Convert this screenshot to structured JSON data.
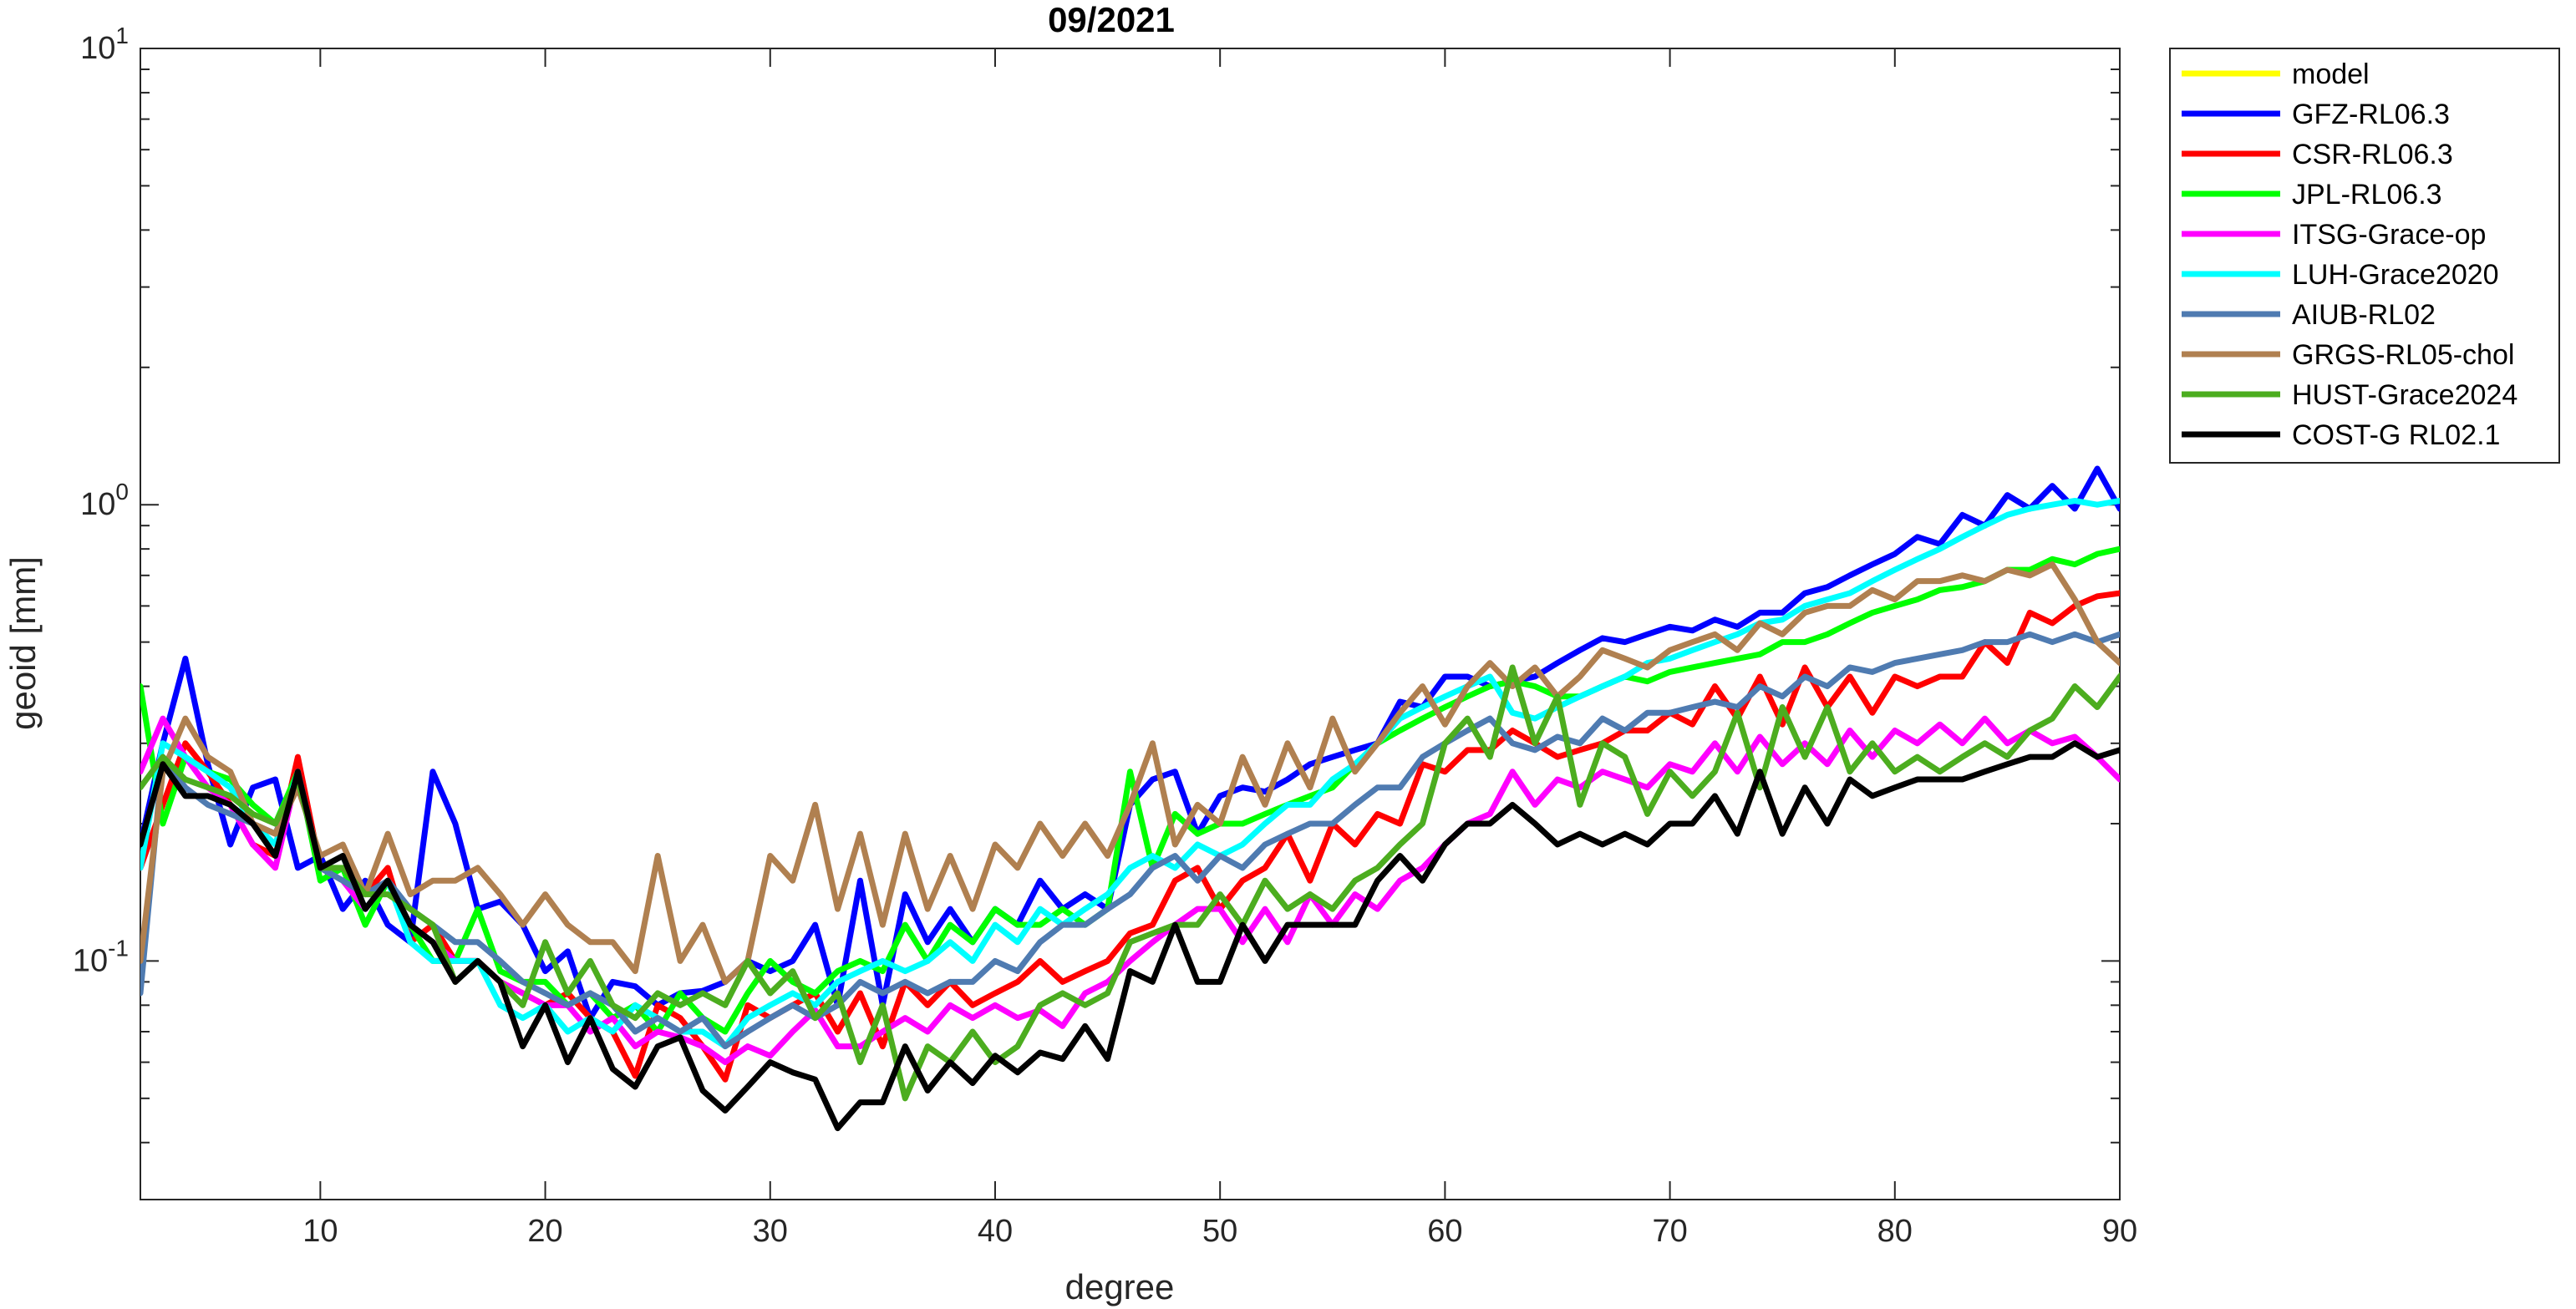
{
  "chart_data": {
    "type": "line",
    "title": "09/2021",
    "xlabel": "degree",
    "ylabel": "geoid [mm]",
    "xlim": [
      2,
      90
    ],
    "ylim": [
      0.03,
      10
    ],
    "yscale": "log",
    "x_ticks": [
      10,
      20,
      30,
      40,
      50,
      60,
      70,
      80,
      90
    ],
    "x_tick_labels": [
      "10",
      "20",
      "30",
      "40",
      "50",
      "60",
      "70",
      "80",
      "90"
    ],
    "y_ticks": [
      {
        "value": 0.1,
        "base": "10",
        "exp": "-1"
      },
      {
        "value": 1,
        "base": "10",
        "exp": "0"
      },
      {
        "value": 10,
        "base": "10",
        "exp": "1"
      }
    ],
    "grid": false,
    "legend_position": "outside-top-right",
    "series": [
      {
        "name": "model",
        "color": "#ffff00",
        "values": []
      },
      {
        "name": "GFZ-RL06.3",
        "color": "#0000ff",
        "values": [
          0.18,
          0.3,
          0.46,
          0.27,
          0.18,
          0.24,
          0.25,
          0.16,
          0.17,
          0.13,
          0.15,
          0.12,
          0.11,
          0.26,
          0.2,
          0.13,
          0.135,
          0.12,
          0.095,
          0.105,
          0.075,
          0.09,
          0.088,
          0.08,
          0.085,
          0.086,
          0.09,
          0.1,
          0.095,
          0.1,
          0.12,
          0.08,
          0.15,
          0.08,
          0.14,
          0.11,
          0.13,
          0.11,
          0.13,
          0.12,
          0.15,
          0.13,
          0.14,
          0.13,
          0.22,
          0.25,
          0.26,
          0.19,
          0.23,
          0.24,
          0.235,
          0.25,
          0.27,
          0.28,
          0.29,
          0.3,
          0.37,
          0.36,
          0.42,
          0.42,
          0.4,
          0.41,
          0.42,
          0.45,
          0.48,
          0.51,
          0.5,
          0.52,
          0.54,
          0.53,
          0.56,
          0.54,
          0.58,
          0.58,
          0.64,
          0.66,
          0.7,
          0.74,
          0.78,
          0.85,
          0.82,
          0.95,
          0.9,
          1.05,
          0.98,
          1.1,
          0.98,
          1.2,
          0.98,
          1.2
        ]
      },
      {
        "name": "CSR-RL06.3",
        "color": "#ff0000",
        "values": [
          0.16,
          0.22,
          0.3,
          0.26,
          0.22,
          0.18,
          0.17,
          0.28,
          0.16,
          0.17,
          0.14,
          0.16,
          0.11,
          0.12,
          0.1,
          0.1,
          0.09,
          0.085,
          0.08,
          0.085,
          0.075,
          0.07,
          0.056,
          0.08,
          0.075,
          0.065,
          0.055,
          0.08,
          0.075,
          0.08,
          0.085,
          0.07,
          0.085,
          0.065,
          0.09,
          0.08,
          0.09,
          0.08,
          0.085,
          0.09,
          0.1,
          0.09,
          0.095,
          0.1,
          0.115,
          0.12,
          0.15,
          0.16,
          0.13,
          0.15,
          0.16,
          0.19,
          0.15,
          0.2,
          0.18,
          0.21,
          0.2,
          0.27,
          0.26,
          0.29,
          0.29,
          0.32,
          0.3,
          0.28,
          0.29,
          0.3,
          0.32,
          0.32,
          0.35,
          0.33,
          0.4,
          0.34,
          0.42,
          0.33,
          0.44,
          0.36,
          0.42,
          0.35,
          0.42,
          0.4,
          0.42,
          0.42,
          0.5,
          0.45,
          0.58,
          0.55,
          0.6,
          0.63,
          0.64,
          0.7
        ]
      },
      {
        "name": "JPL-RL06.3",
        "color": "#00ff00",
        "values": [
          0.4,
          0.2,
          0.28,
          0.26,
          0.25,
          0.22,
          0.2,
          0.26,
          0.15,
          0.16,
          0.12,
          0.15,
          0.12,
          0.1,
          0.1,
          0.13,
          0.095,
          0.09,
          0.09,
          0.08,
          0.085,
          0.075,
          0.08,
          0.07,
          0.085,
          0.075,
          0.07,
          0.085,
          0.1,
          0.09,
          0.085,
          0.095,
          0.1,
          0.095,
          0.12,
          0.1,
          0.12,
          0.11,
          0.13,
          0.12,
          0.12,
          0.13,
          0.12,
          0.13,
          0.26,
          0.16,
          0.21,
          0.19,
          0.2,
          0.2,
          0.21,
          0.22,
          0.23,
          0.24,
          0.27,
          0.3,
          0.32,
          0.34,
          0.36,
          0.38,
          0.4,
          0.41,
          0.4,
          0.38,
          0.38,
          0.4,
          0.42,
          0.41,
          0.43,
          0.44,
          0.45,
          0.46,
          0.47,
          0.5,
          0.5,
          0.52,
          0.55,
          0.58,
          0.6,
          0.62,
          0.65,
          0.66,
          0.68,
          0.72,
          0.72,
          0.76,
          0.74,
          0.78,
          0.8,
          0.78
        ]
      },
      {
        "name": "ITSG-Grace-op",
        "color": "#ff00ff",
        "values": [
          0.26,
          0.34,
          0.28,
          0.24,
          0.22,
          0.18,
          0.16,
          0.26,
          0.16,
          0.15,
          0.13,
          0.15,
          0.12,
          0.11,
          0.1,
          0.1,
          0.09,
          0.085,
          0.08,
          0.08,
          0.07,
          0.075,
          0.065,
          0.07,
          0.068,
          0.065,
          0.06,
          0.065,
          0.062,
          0.07,
          0.078,
          0.065,
          0.065,
          0.07,
          0.075,
          0.07,
          0.08,
          0.075,
          0.08,
          0.075,
          0.078,
          0.072,
          0.085,
          0.09,
          0.1,
          0.11,
          0.12,
          0.13,
          0.13,
          0.11,
          0.13,
          0.11,
          0.14,
          0.12,
          0.14,
          0.13,
          0.15,
          0.16,
          0.18,
          0.2,
          0.21,
          0.26,
          0.22,
          0.25,
          0.24,
          0.26,
          0.25,
          0.24,
          0.27,
          0.26,
          0.3,
          0.26,
          0.31,
          0.27,
          0.3,
          0.27,
          0.32,
          0.28,
          0.32,
          0.3,
          0.33,
          0.3,
          0.34,
          0.3,
          0.32,
          0.3,
          0.31,
          0.28,
          0.25,
          0.29
        ]
      },
      {
        "name": "LUH-Grace2020",
        "color": "#00ffff",
        "values": [
          0.16,
          0.3,
          0.28,
          0.26,
          0.24,
          0.2,
          0.18,
          0.26,
          0.16,
          0.17,
          0.13,
          0.15,
          0.11,
          0.1,
          0.1,
          0.1,
          0.08,
          0.075,
          0.08,
          0.07,
          0.075,
          0.07,
          0.08,
          0.075,
          0.07,
          0.07,
          0.065,
          0.075,
          0.08,
          0.085,
          0.08,
          0.09,
          0.095,
          0.1,
          0.095,
          0.1,
          0.11,
          0.1,
          0.12,
          0.11,
          0.13,
          0.12,
          0.13,
          0.14,
          0.16,
          0.17,
          0.16,
          0.18,
          0.17,
          0.18,
          0.2,
          0.22,
          0.22,
          0.25,
          0.27,
          0.3,
          0.34,
          0.36,
          0.38,
          0.4,
          0.42,
          0.35,
          0.34,
          0.36,
          0.38,
          0.4,
          0.42,
          0.45,
          0.46,
          0.48,
          0.5,
          0.52,
          0.55,
          0.56,
          0.6,
          0.62,
          0.64,
          0.68,
          0.72,
          0.76,
          0.8,
          0.85,
          0.9,
          0.95,
          0.98,
          1.0,
          1.02,
          1.0,
          1.02,
          1.0
        ]
      },
      {
        "name": "AIUB-RL02",
        "color": "#4f7bb1",
        "values": [
          0.085,
          0.28,
          0.24,
          0.22,
          0.21,
          0.2,
          0.19,
          0.25,
          0.16,
          0.15,
          0.14,
          0.15,
          0.13,
          0.12,
          0.11,
          0.11,
          0.1,
          0.09,
          0.085,
          0.08,
          0.085,
          0.08,
          0.07,
          0.075,
          0.07,
          0.075,
          0.065,
          0.07,
          0.075,
          0.08,
          0.075,
          0.08,
          0.09,
          0.085,
          0.09,
          0.085,
          0.09,
          0.09,
          0.1,
          0.095,
          0.11,
          0.12,
          0.12,
          0.13,
          0.14,
          0.16,
          0.17,
          0.15,
          0.17,
          0.16,
          0.18,
          0.19,
          0.2,
          0.2,
          0.22,
          0.24,
          0.24,
          0.28,
          0.3,
          0.32,
          0.34,
          0.3,
          0.29,
          0.31,
          0.3,
          0.34,
          0.32,
          0.35,
          0.35,
          0.36,
          0.37,
          0.36,
          0.4,
          0.38,
          0.42,
          0.4,
          0.44,
          0.43,
          0.45,
          0.46,
          0.47,
          0.48,
          0.5,
          0.5,
          0.52,
          0.5,
          0.52,
          0.5,
          0.52,
          0.5
        ]
      },
      {
        "name": "GRGS-RL05-chol",
        "color": "#b08050",
        "values": [
          0.1,
          0.26,
          0.34,
          0.28,
          0.26,
          0.2,
          0.19,
          0.24,
          0.17,
          0.18,
          0.14,
          0.19,
          0.14,
          0.15,
          0.15,
          0.16,
          0.14,
          0.12,
          0.14,
          0.12,
          0.11,
          0.11,
          0.095,
          0.17,
          0.1,
          0.12,
          0.09,
          0.1,
          0.17,
          0.15,
          0.22,
          0.13,
          0.19,
          0.12,
          0.19,
          0.13,
          0.17,
          0.13,
          0.18,
          0.16,
          0.2,
          0.17,
          0.2,
          0.17,
          0.22,
          0.3,
          0.18,
          0.22,
          0.2,
          0.28,
          0.22,
          0.3,
          0.24,
          0.34,
          0.26,
          0.3,
          0.35,
          0.4,
          0.33,
          0.4,
          0.45,
          0.4,
          0.44,
          0.38,
          0.42,
          0.48,
          0.46,
          0.44,
          0.48,
          0.5,
          0.52,
          0.48,
          0.55,
          0.52,
          0.58,
          0.6,
          0.6,
          0.65,
          0.62,
          0.68,
          0.68,
          0.7,
          0.68,
          0.72,
          0.7,
          0.74,
          0.62,
          0.5,
          0.45,
          0.42
        ]
      },
      {
        "name": "HUST-Grace2024",
        "color": "#4cad1f",
        "values": [
          0.24,
          0.28,
          0.25,
          0.24,
          0.23,
          0.21,
          0.2,
          0.25,
          0.16,
          0.16,
          0.14,
          0.14,
          0.13,
          0.12,
          0.09,
          0.1,
          0.09,
          0.08,
          0.11,
          0.085,
          0.1,
          0.08,
          0.075,
          0.085,
          0.08,
          0.085,
          0.08,
          0.1,
          0.085,
          0.095,
          0.075,
          0.085,
          0.06,
          0.08,
          0.05,
          0.065,
          0.06,
          0.07,
          0.06,
          0.065,
          0.08,
          0.085,
          0.08,
          0.085,
          0.11,
          0.115,
          0.12,
          0.12,
          0.14,
          0.12,
          0.15,
          0.13,
          0.14,
          0.13,
          0.15,
          0.16,
          0.18,
          0.2,
          0.3,
          0.34,
          0.28,
          0.44,
          0.3,
          0.38,
          0.22,
          0.3,
          0.28,
          0.21,
          0.26,
          0.23,
          0.26,
          0.35,
          0.24,
          0.36,
          0.28,
          0.36,
          0.26,
          0.3,
          0.26,
          0.28,
          0.26,
          0.28,
          0.3,
          0.28,
          0.32,
          0.34,
          0.4,
          0.36,
          0.42,
          0.48
        ]
      },
      {
        "name": "COST-G RL02.1",
        "color": "#000000",
        "values": [
          0.18,
          0.27,
          0.23,
          0.23,
          0.22,
          0.2,
          0.17,
          0.26,
          0.16,
          0.17,
          0.13,
          0.15,
          0.12,
          0.11,
          0.09,
          0.1,
          0.09,
          0.065,
          0.08,
          0.06,
          0.075,
          0.058,
          0.053,
          0.065,
          0.068,
          0.052,
          0.047,
          0.053,
          0.06,
          0.057,
          0.055,
          0.043,
          0.049,
          0.049,
          0.065,
          0.052,
          0.06,
          0.054,
          0.062,
          0.057,
          0.063,
          0.061,
          0.072,
          0.061,
          0.095,
          0.09,
          0.12,
          0.09,
          0.09,
          0.12,
          0.1,
          0.12,
          0.12,
          0.12,
          0.12,
          0.15,
          0.17,
          0.15,
          0.18,
          0.2,
          0.2,
          0.22,
          0.2,
          0.18,
          0.19,
          0.18,
          0.19,
          0.18,
          0.2,
          0.2,
          0.23,
          0.19,
          0.26,
          0.19,
          0.24,
          0.2,
          0.25,
          0.23,
          0.24,
          0.25,
          0.25,
          0.25,
          0.26,
          0.27,
          0.28,
          0.28,
          0.3,
          0.28,
          0.29,
          0.26,
          0.32
        ]
      }
    ]
  }
}
